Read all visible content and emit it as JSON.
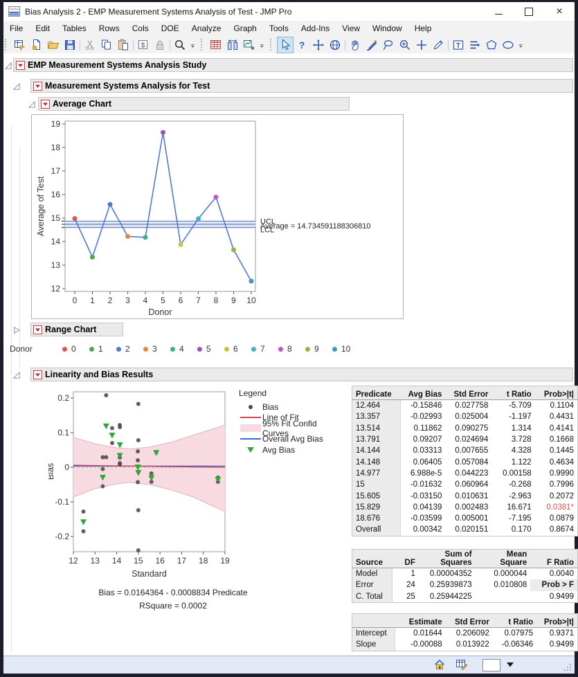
{
  "window": {
    "title": "Bias Analysis 2 - EMP Measurement Systems Analysis of Test - JMP Pro",
    "controls": [
      "minimize",
      "maximize",
      "close"
    ]
  },
  "menu": {
    "items": [
      "File",
      "Edit",
      "Tables",
      "Rows",
      "Cols",
      "DOE",
      "Analyze",
      "Graph",
      "Tools",
      "Add-Ins",
      "View",
      "Window",
      "Help"
    ]
  },
  "toolbar": {
    "groups": [
      [
        {
          "icon": "new-data-table"
        },
        {
          "icon": "new-script"
        },
        {
          "icon": "open-folder"
        },
        {
          "icon": "save"
        },
        {
          "sep": true
        },
        {
          "icon": "cut",
          "disabled": true
        },
        {
          "icon": "copy"
        },
        {
          "icon": "paste"
        },
        {
          "sep": true
        },
        {
          "icon": "data-filter"
        },
        {
          "icon": "lock",
          "disabled": true
        },
        {
          "sep": true
        },
        {
          "icon": "search"
        },
        {
          "icon": "overflow-caret",
          "narrow": true
        }
      ],
      [
        {
          "icon": "data-table"
        },
        {
          "icon": "column-switcher"
        },
        {
          "icon": "new-graph"
        },
        {
          "icon": "overflow-caret",
          "narrow": true
        }
      ],
      [
        {
          "icon": "arrow-cursor",
          "selected": true
        },
        {
          "icon": "help"
        },
        {
          "icon": "move-cross"
        },
        {
          "icon": "globe"
        },
        {
          "sep": true
        },
        {
          "icon": "grabber-hand"
        },
        {
          "icon": "brush"
        },
        {
          "icon": "lasso"
        },
        {
          "icon": "zoom-in"
        },
        {
          "icon": "crosshair"
        },
        {
          "icon": "pencil"
        },
        {
          "sep": true
        },
        {
          "icon": "text-annotation"
        },
        {
          "icon": "line-annotation"
        },
        {
          "icon": "polygon-annotation"
        },
        {
          "icon": "oval-annotation"
        },
        {
          "icon": "overflow-caret",
          "narrow": true
        }
      ]
    ]
  },
  "outline": {
    "study_title": "EMP Measurement Systems Analysis Study",
    "msa_title": "Measurement Systems Analysis for Test",
    "avg_chart_title": "Average Chart",
    "range_chart_title": "Range Chart",
    "linearity_title": "Linearity and Bias Results"
  },
  "donor_legend": {
    "label": "Donor",
    "entries": [
      "0",
      "1",
      "2",
      "3",
      "4",
      "5",
      "6",
      "7",
      "8",
      "9",
      "10"
    ]
  },
  "colors": {
    "donor_palette": [
      "#df5352",
      "#4ca74e",
      "#4d79d2",
      "#dc8b42",
      "#3eae90",
      "#9c50c8",
      "#c9c342",
      "#41b2c3",
      "#c751c7",
      "#93b842",
      "#4297ce"
    ],
    "series_line": "#4d79d2",
    "ref_line": "#6e81b8",
    "ref_band": "#dfe7f6",
    "bias_dot": "#4a4a4a",
    "fit_line": "#d04255",
    "band_fill": "#f8dbe1",
    "band_edge": "#e0b4bd",
    "overall_line": "#3b6bd6",
    "avg_bias_marker": "#2ea836",
    "highlight_red": "#e05252"
  },
  "chart_data": [
    {
      "type": "line",
      "title": "Average Chart",
      "xlabel": "Donor",
      "ylabel": "Average of Test",
      "xlim": [
        0,
        10
      ],
      "ylim": [
        12,
        19
      ],
      "x": [
        0,
        1,
        2,
        3,
        4,
        5,
        6,
        7,
        8,
        9,
        10
      ],
      "values": [
        14.98,
        13.34,
        15.58,
        14.22,
        14.18,
        18.64,
        13.87,
        14.97,
        15.89,
        13.65,
        12.32
      ],
      "ref_lines": {
        "ucl": 14.87,
        "average": 14.7346,
        "lcl": 14.6
      },
      "ref_labels": {
        "ucl": "UCL",
        "average": "Average = 14.734591188306810",
        "lcl": "LCL"
      }
    },
    {
      "type": "scatter",
      "xlabel": "Standard",
      "ylabel": "Bias",
      "xlim": [
        12,
        19
      ],
      "y_ticks": [
        -0.2,
        -0.1,
        0,
        0.1,
        0.2
      ],
      "x_ticks": [
        12,
        13,
        14,
        15,
        16,
        17,
        18,
        19
      ],
      "bias_points": [
        [
          12.464,
          -0.128
        ],
        [
          12.464,
          -0.185
        ],
        [
          13.357,
          0.029
        ],
        [
          13.357,
          -0.005
        ],
        [
          13.357,
          -0.055
        ],
        [
          13.514,
          0.208
        ],
        [
          13.514,
          0.029
        ],
        [
          13.791,
          0.113
        ],
        [
          13.791,
          0.07
        ],
        [
          14.144,
          0.122
        ],
        [
          14.144,
          0.028
        ],
        [
          14.144,
          0.008
        ],
        [
          14.148,
          0.116
        ],
        [
          14.148,
          0.012
        ],
        [
          14.977,
          0.046
        ],
        [
          14.977,
          0.02
        ],
        [
          14.977,
          -0.043
        ],
        [
          15,
          0.183
        ],
        [
          15,
          0.078
        ],
        [
          15,
          -0.013
        ],
        [
          15,
          -0.124
        ],
        [
          15,
          -0.24
        ],
        [
          15.605,
          -0.018
        ],
        [
          15.605,
          -0.042
        ],
        [
          15.829,
          0.044
        ],
        [
          18.676,
          -0.03
        ],
        [
          18.676,
          -0.042
        ]
      ],
      "avg_bias_points": [
        [
          12.464,
          -0.15846
        ],
        [
          13.357,
          -0.02993
        ],
        [
          13.514,
          0.11862
        ],
        [
          13.791,
          0.09207
        ],
        [
          14.144,
          0.03313
        ],
        [
          14.148,
          0.06405
        ],
        [
          14.977,
          7e-05
        ],
        [
          15,
          -0.01632
        ],
        [
          15.605,
          -0.0315
        ],
        [
          15.829,
          0.04139
        ],
        [
          18.676,
          -0.03599
        ]
      ],
      "fit": {
        "intercept": 0.0164364,
        "slope": -0.0008834
      },
      "overall_avg_bias": 0.00342,
      "band": {
        "x": [
          12,
          13,
          14,
          14.6,
          15.5,
          16.5,
          17.5,
          19
        ],
        "upper": [
          0.086,
          0.068,
          0.056,
          0.053,
          0.058,
          0.072,
          0.092,
          0.122
        ],
        "lower": [
          -0.086,
          -0.062,
          -0.048,
          -0.044,
          -0.05,
          -0.065,
          -0.085,
          -0.128
        ]
      },
      "legend": {
        "title": "Legend",
        "items": [
          {
            "label": "Bias",
            "type": "dot"
          },
          {
            "label": "Line of Fit",
            "type": "red-line"
          },
          {
            "label": "95% Fit Confid Curves",
            "type": "pink-rect"
          },
          {
            "label": "Overall Avg Bias",
            "type": "blue-line"
          },
          {
            "label": "Avg Bias",
            "type": "green-triangle"
          }
        ]
      },
      "equation_line1": "Bias = 0.0164364 - 0.0008834 Predicate",
      "equation_line2": "RSquare = 0.0002"
    }
  ],
  "bias_table": {
    "headers": [
      "Predicate",
      "Avg Bias",
      "Std Error",
      "t Ratio",
      "Prob>|t|"
    ],
    "rows": [
      [
        "12.464",
        "-0.15846",
        "0.027758",
        "-5.709",
        "0.1104"
      ],
      [
        "13.357",
        "-0.02993",
        "0.025004",
        "-1.197",
        "0.4431"
      ],
      [
        "13.514",
        "0.11862",
        "0.090275",
        "1.314",
        "0.4141"
      ],
      [
        "13.791",
        "0.09207",
        "0.024694",
        "3.728",
        "0.1668"
      ],
      [
        "14.144",
        "0.03313",
        "0.007655",
        "4.328",
        "0.1445"
      ],
      [
        "14.148",
        "0.06405",
        "0.057084",
        "1.122",
        "0.4634"
      ],
      [
        "14.977",
        "6.988e-5",
        "0.044223",
        "0.00158",
        "0.9990"
      ],
      [
        "15",
        "-0.01632",
        "0.060964",
        "-0.268",
        "0.7996"
      ],
      [
        "15.605",
        "-0.03150",
        "0.010631",
        "-2.963",
        "0.2072"
      ],
      [
        "15.829",
        "0.04139",
        "0.002483",
        "16.671",
        "0.0381*"
      ],
      [
        "18.676",
        "-0.03599",
        "0.005001",
        "-7.195",
        "0.0879"
      ],
      [
        "Overall",
        "0.00342",
        "0.020151",
        "0.170",
        "0.8674"
      ]
    ],
    "red_cell": {
      "row": 9,
      "col": 4
    }
  },
  "anova_table": {
    "headers": [
      "Source",
      "DF",
      "Sum of\nSquares",
      "Mean Square",
      "F Ratio"
    ],
    "rows": [
      [
        "Model",
        "1",
        "0.00004352",
        "0.000044",
        "0.0040"
      ],
      [
        "Error",
        "24",
        "0.25939873",
        "0.010808",
        "Prob > F"
      ],
      [
        "C. Total",
        "25",
        "0.25944225",
        "",
        "0.9499"
      ]
    ],
    "embedded_header": {
      "row": 1,
      "col": 4
    }
  },
  "param_table": {
    "headers": [
      "",
      "Estimate",
      "Std Error",
      "t Ratio",
      "Prob>|t|"
    ],
    "rows": [
      [
        "Intercept",
        "0.01644",
        "0.206092",
        "0.07975",
        "0.9371"
      ],
      [
        "Slope",
        "-0.00088",
        "0.013922",
        "-0.06346",
        "0.9499"
      ]
    ]
  },
  "statusbar": {
    "icons": [
      "home",
      "table-edit",
      "color-swatch",
      "caret-down",
      "resize-grip"
    ]
  }
}
